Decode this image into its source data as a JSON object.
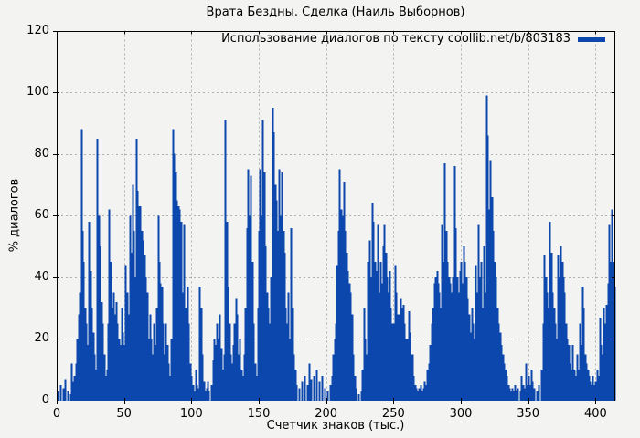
{
  "chart": {
    "title": "Врата Бездны. Сделка (Наиль Выборнов)",
    "legend_label": "Использование диалогов по тексту coollib.net/b/803183",
    "ylabel": "% диалогов",
    "xlabel": "Счетчик знаков (тыс.)"
  },
  "chart_data": {
    "type": "bar",
    "subtype": "impulses",
    "title": "Врата Бездны. Сделка (Наиль Выборнов)",
    "legend": "Использование диалогов по тексту coollib.net/b/803183",
    "xlabel": "Счетчик знаков (тыс.)",
    "ylabel": "% диалогов",
    "xlim": [
      0,
      414
    ],
    "ylim": [
      0,
      120
    ],
    "xticks": [
      0,
      50,
      100,
      150,
      200,
      250,
      300,
      350,
      400
    ],
    "yticks": [
      0,
      20,
      40,
      60,
      80,
      100,
      120
    ],
    "xgrid": [
      50,
      100,
      150,
      200,
      250,
      300,
      350,
      400
    ],
    "ygrid": [
      20,
      40,
      60,
      80,
      100
    ],
    "grid_on": true,
    "legend_position": "top-right-inside",
    "bar_color": "#0c47ad",
    "grid_color": "#b0b0b0",
    "background_color": "#f3f3f1",
    "border_color": "#000000",
    "points": [
      [
        1,
        3
      ],
      [
        3,
        5
      ],
      [
        5,
        4
      ],
      [
        6,
        7
      ],
      [
        8,
        3
      ],
      [
        10,
        2
      ],
      [
        11,
        12
      ],
      [
        12,
        6
      ],
      [
        13,
        8
      ],
      [
        14,
        12
      ],
      [
        15,
        20
      ],
      [
        16,
        28
      ],
      [
        17,
        35
      ],
      [
        18,
        88
      ],
      [
        19,
        55
      ],
      [
        20,
        45
      ],
      [
        21,
        30
      ],
      [
        22,
        25
      ],
      [
        23,
        18
      ],
      [
        24,
        58
      ],
      [
        25,
        42
      ],
      [
        26,
        30
      ],
      [
        27,
        22
      ],
      [
        28,
        15
      ],
      [
        29,
        10
      ],
      [
        30,
        85
      ],
      [
        31,
        60
      ],
      [
        32,
        50
      ],
      [
        33,
        32
      ],
      [
        34,
        25
      ],
      [
        35,
        15
      ],
      [
        36,
        8
      ],
      [
        37,
        10
      ],
      [
        38,
        25
      ],
      [
        39,
        62
      ],
      [
        40,
        45
      ],
      [
        41,
        30
      ],
      [
        42,
        35
      ],
      [
        43,
        28
      ],
      [
        44,
        32
      ],
      [
        45,
        25
      ],
      [
        46,
        20
      ],
      [
        47,
        18
      ],
      [
        48,
        30
      ],
      [
        49,
        22
      ],
      [
        50,
        18
      ],
      [
        51,
        44
      ],
      [
        52,
        35
      ],
      [
        53,
        28
      ],
      [
        54,
        60
      ],
      [
        55,
        48
      ],
      [
        56,
        70
      ],
      [
        57,
        55
      ],
      [
        58,
        40
      ],
      [
        59,
        85
      ],
      [
        60,
        68
      ],
      [
        61,
        63
      ],
      [
        62,
        63
      ],
      [
        63,
        55
      ],
      [
        64,
        52
      ],
      [
        65,
        47
      ],
      [
        66,
        40
      ],
      [
        67,
        35
      ],
      [
        68,
        20
      ],
      [
        69,
        28
      ],
      [
        70,
        20
      ],
      [
        71,
        15
      ],
      [
        72,
        25
      ],
      [
        73,
        18
      ],
      [
        74,
        30
      ],
      [
        75,
        60
      ],
      [
        76,
        45
      ],
      [
        77,
        38
      ],
      [
        78,
        37
      ],
      [
        79,
        25
      ],
      [
        80,
        15
      ],
      [
        81,
        25
      ],
      [
        82,
        18
      ],
      [
        83,
        12
      ],
      [
        84,
        8
      ],
      [
        85,
        20
      ],
      [
        86,
        88
      ],
      [
        87,
        80
      ],
      [
        88,
        74
      ],
      [
        89,
        65
      ],
      [
        90,
        63
      ],
      [
        91,
        62
      ],
      [
        92,
        58
      ],
      [
        93,
        35
      ],
      [
        94,
        57
      ],
      [
        95,
        28
      ],
      [
        96,
        30
      ],
      [
        97,
        37
      ],
      [
        98,
        25
      ],
      [
        99,
        12
      ],
      [
        100,
        8
      ],
      [
        101,
        5
      ],
      [
        102,
        3
      ],
      [
        103,
        10
      ],
      [
        104,
        5
      ],
      [
        105,
        4
      ],
      [
        106,
        37
      ],
      [
        107,
        30
      ],
      [
        108,
        15
      ],
      [
        109,
        6
      ],
      [
        110,
        3
      ],
      [
        111,
        4
      ],
      [
        112,
        6
      ],
      [
        113,
        3
      ],
      [
        115,
        5
      ],
      [
        116,
        13
      ],
      [
        117,
        20
      ],
      [
        118,
        18
      ],
      [
        119,
        25
      ],
      [
        120,
        20
      ],
      [
        121,
        28
      ],
      [
        122,
        17
      ],
      [
        123,
        10
      ],
      [
        124,
        15
      ],
      [
        125,
        91
      ],
      [
        126,
        58
      ],
      [
        127,
        37
      ],
      [
        128,
        25
      ],
      [
        129,
        15
      ],
      [
        130,
        12
      ],
      [
        131,
        18
      ],
      [
        132,
        25
      ],
      [
        133,
        33
      ],
      [
        134,
        28
      ],
      [
        135,
        15
      ],
      [
        136,
        20
      ],
      [
        137,
        10
      ],
      [
        138,
        8
      ],
      [
        139,
        15
      ],
      [
        140,
        30
      ],
      [
        141,
        56
      ],
      [
        142,
        75
      ],
      [
        143,
        60
      ],
      [
        144,
        73
      ],
      [
        145,
        45
      ],
      [
        146,
        25
      ],
      [
        147,
        12
      ],
      [
        148,
        8
      ],
      [
        149,
        30
      ],
      [
        150,
        55
      ],
      [
        151,
        75
      ],
      [
        152,
        60
      ],
      [
        153,
        91
      ],
      [
        154,
        74
      ],
      [
        155,
        50
      ],
      [
        156,
        35
      ],
      [
        157,
        30
      ],
      [
        158,
        25
      ],
      [
        159,
        40
      ],
      [
        160,
        95
      ],
      [
        161,
        87
      ],
      [
        162,
        70
      ],
      [
        163,
        65
      ],
      [
        164,
        55
      ],
      [
        165,
        75
      ],
      [
        166,
        60
      ],
      [
        167,
        74
      ],
      [
        168,
        55
      ],
      [
        169,
        48
      ],
      [
        170,
        30
      ],
      [
        171,
        25
      ],
      [
        172,
        35
      ],
      [
        173,
        20
      ],
      [
        174,
        56
      ],
      [
        175,
        30
      ],
      [
        176,
        15
      ],
      [
        177,
        10
      ],
      [
        178,
        5
      ],
      [
        180,
        4
      ],
      [
        182,
        6
      ],
      [
        184,
        8
      ],
      [
        186,
        5
      ],
      [
        187,
        12
      ],
      [
        189,
        7
      ],
      [
        191,
        8
      ],
      [
        193,
        10
      ],
      [
        195,
        6
      ],
      [
        197,
        8
      ],
      [
        199,
        4
      ],
      [
        201,
        3
      ],
      [
        203,
        5
      ],
      [
        204,
        8
      ],
      [
        205,
        15
      ],
      [
        206,
        20
      ],
      [
        207,
        25
      ],
      [
        208,
        44
      ],
      [
        209,
        55
      ],
      [
        210,
        75
      ],
      [
        211,
        62
      ],
      [
        212,
        60
      ],
      [
        213,
        71
      ],
      [
        214,
        55
      ],
      [
        215,
        48
      ],
      [
        216,
        42
      ],
      [
        217,
        38
      ],
      [
        218,
        35
      ],
      [
        219,
        28
      ],
      [
        220,
        15
      ],
      [
        221,
        8
      ],
      [
        222,
        4
      ],
      [
        224,
        2
      ],
      [
        226,
        3
      ],
      [
        227,
        10
      ],
      [
        228,
        30
      ],
      [
        229,
        20
      ],
      [
        230,
        15
      ],
      [
        231,
        45
      ],
      [
        232,
        52
      ],
      [
        233,
        40
      ],
      [
        234,
        64
      ],
      [
        235,
        58
      ],
      [
        236,
        45
      ],
      [
        237,
        42
      ],
      [
        238,
        57
      ],
      [
        239,
        35
      ],
      [
        240,
        45
      ],
      [
        241,
        38
      ],
      [
        242,
        50
      ],
      [
        243,
        57
      ],
      [
        244,
        48
      ],
      [
        245,
        40
      ],
      [
        246,
        35
      ],
      [
        247,
        42
      ],
      [
        248,
        30
      ],
      [
        249,
        25
      ],
      [
        250,
        25
      ],
      [
        251,
        44
      ],
      [
        252,
        35
      ],
      [
        253,
        28
      ],
      [
        254,
        28
      ],
      [
        255,
        33
      ],
      [
        256,
        30
      ],
      [
        257,
        31
      ],
      [
        258,
        25
      ],
      [
        259,
        20
      ],
      [
        260,
        20
      ],
      [
        261,
        29
      ],
      [
        262,
        22
      ],
      [
        263,
        15
      ],
      [
        264,
        15
      ],
      [
        265,
        8
      ],
      [
        266,
        5
      ],
      [
        267,
        4
      ],
      [
        268,
        3
      ],
      [
        269,
        4
      ],
      [
        270,
        5
      ],
      [
        271,
        3
      ],
      [
        272,
        4
      ],
      [
        273,
        6
      ],
      [
        274,
        5
      ],
      [
        275,
        10
      ],
      [
        276,
        12
      ],
      [
        277,
        18
      ],
      [
        278,
        25
      ],
      [
        279,
        30
      ],
      [
        280,
        38
      ],
      [
        281,
        40
      ],
      [
        282,
        42
      ],
      [
        283,
        38
      ],
      [
        284,
        35
      ],
      [
        285,
        30
      ],
      [
        286,
        57
      ],
      [
        287,
        45
      ],
      [
        288,
        77
      ],
      [
        289,
        55
      ],
      [
        290,
        45
      ],
      [
        291,
        40
      ],
      [
        292,
        38
      ],
      [
        293,
        35
      ],
      [
        294,
        40
      ],
      [
        295,
        76
      ],
      [
        296,
        56
      ],
      [
        297,
        40
      ],
      [
        298,
        35
      ],
      [
        299,
        42
      ],
      [
        300,
        45
      ],
      [
        301,
        38
      ],
      [
        302,
        50
      ],
      [
        303,
        45
      ],
      [
        304,
        40
      ],
      [
        305,
        33
      ],
      [
        306,
        28
      ],
      [
        307,
        22
      ],
      [
        308,
        30
      ],
      [
        309,
        25
      ],
      [
        310,
        20
      ],
      [
        311,
        44
      ],
      [
        312,
        35
      ],
      [
        313,
        57
      ],
      [
        314,
        40
      ],
      [
        315,
        45
      ],
      [
        316,
        30
      ],
      [
        317,
        50
      ],
      [
        318,
        35
      ],
      [
        319,
        99
      ],
      [
        320,
        86
      ],
      [
        321,
        62
      ],
      [
        322,
        78
      ],
      [
        323,
        66
      ],
      [
        324,
        55
      ],
      [
        325,
        45
      ],
      [
        326,
        40
      ],
      [
        327,
        30
      ],
      [
        328,
        25
      ],
      [
        329,
        22
      ],
      [
        330,
        18
      ],
      [
        331,
        15
      ],
      [
        332,
        12
      ],
      [
        333,
        10
      ],
      [
        334,
        8
      ],
      [
        335,
        5
      ],
      [
        336,
        4
      ],
      [
        337,
        3
      ],
      [
        338,
        4
      ],
      [
        339,
        3
      ],
      [
        340,
        5
      ],
      [
        341,
        3
      ],
      [
        342,
        4
      ],
      [
        344,
        3
      ],
      [
        345,
        8
      ],
      [
        346,
        5
      ],
      [
        347,
        4
      ],
      [
        348,
        12
      ],
      [
        349,
        5
      ],
      [
        350,
        8
      ],
      [
        351,
        5
      ],
      [
        352,
        10
      ],
      [
        353,
        6
      ],
      [
        354,
        4
      ],
      [
        356,
        3
      ],
      [
        358,
        5
      ],
      [
        360,
        10
      ],
      [
        361,
        25
      ],
      [
        362,
        47
      ],
      [
        363,
        40
      ],
      [
        364,
        35
      ],
      [
        365,
        30
      ],
      [
        366,
        58
      ],
      [
        367,
        48
      ],
      [
        368,
        35
      ],
      [
        369,
        30
      ],
      [
        370,
        25
      ],
      [
        371,
        20
      ],
      [
        372,
        47
      ],
      [
        373,
        40
      ],
      [
        374,
        50
      ],
      [
        375,
        45
      ],
      [
        376,
        40
      ],
      [
        377,
        35
      ],
      [
        378,
        25
      ],
      [
        379,
        20
      ],
      [
        380,
        18
      ],
      [
        381,
        12
      ],
      [
        382,
        10
      ],
      [
        383,
        18
      ],
      [
        384,
        10
      ],
      [
        385,
        8
      ],
      [
        386,
        15
      ],
      [
        387,
        10
      ],
      [
        388,
        25
      ],
      [
        389,
        18
      ],
      [
        390,
        37
      ],
      [
        391,
        30
      ],
      [
        392,
        15
      ],
      [
        393,
        12
      ],
      [
        394,
        10
      ],
      [
        395,
        8
      ],
      [
        396,
        6
      ],
      [
        397,
        5
      ],
      [
        398,
        8
      ],
      [
        399,
        5
      ],
      [
        400,
        6
      ],
      [
        401,
        10
      ],
      [
        402,
        8
      ],
      [
        403,
        27
      ],
      [
        404,
        18
      ],
      [
        405,
        15
      ],
      [
        406,
        30
      ],
      [
        407,
        25
      ],
      [
        408,
        31
      ],
      [
        409,
        38
      ],
      [
        410,
        57
      ],
      [
        411,
        45
      ],
      [
        412,
        62
      ],
      [
        413,
        45
      ],
      [
        414,
        37
      ]
    ]
  }
}
